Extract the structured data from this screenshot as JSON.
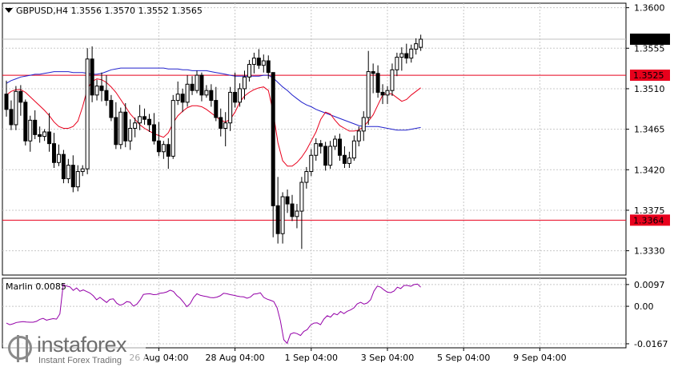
{
  "chart_data": [
    {
      "type": "candlestick",
      "title": "GBPUSD,H4  1.3556 1.3570 1.3552 1.3565",
      "ylim": [
        1.3303,
        1.3605
      ],
      "y_ticks": [
        "1.3600",
        "1.3555",
        "1.3510",
        "1.3465",
        "1.3420",
        "1.3375",
        "1.3330"
      ],
      "x_ticks": [
        "26 Aug 04:00",
        "28 Aug 04:00",
        "1 Sep 04:00",
        "3 Sep 04:00",
        "5 Sep 04:00",
        "9 Sep 04:00"
      ],
      "x_tick_bars": [
        32,
        48,
        64,
        80,
        96,
        112
      ],
      "current_price": "1.3565",
      "levels": [
        {
          "value": 1.3525,
          "label": "1.3525",
          "color": "#e8001c"
        },
        {
          "value": 1.3364,
          "label": "1.3364",
          "color": "#e8001c"
        }
      ],
      "grid": true,
      "ohlc": [
        [
          1.3504,
          1.3519,
          1.3479,
          1.3487
        ],
        [
          1.3487,
          1.3497,
          1.3464,
          1.347
        ],
        [
          1.347,
          1.3513,
          1.3464,
          1.3507
        ],
        [
          1.3507,
          1.3514,
          1.348,
          1.3495
        ],
        [
          1.3495,
          1.3498,
          1.3447,
          1.3452
        ],
        [
          1.3452,
          1.348,
          1.344,
          1.3475
        ],
        [
          1.3475,
          1.3486,
          1.3454,
          1.3459
        ],
        [
          1.3459,
          1.3468,
          1.345,
          1.3457
        ],
        [
          1.3457,
          1.3465,
          1.3452,
          1.3462
        ],
        [
          1.3462,
          1.3483,
          1.344,
          1.3449
        ],
        [
          1.3449,
          1.3461,
          1.3422,
          1.3428
        ],
        [
          1.3428,
          1.3448,
          1.3424,
          1.3437
        ],
        [
          1.3437,
          1.3442,
          1.3405,
          1.341
        ],
        [
          1.341,
          1.3432,
          1.3405,
          1.3425
        ],
        [
          1.3425,
          1.3436,
          1.3395,
          1.3401
        ],
        [
          1.3401,
          1.3425,
          1.3396,
          1.3418
        ],
        [
          1.3418,
          1.3425,
          1.3413,
          1.3421
        ],
        [
          1.3421,
          1.3555,
          1.3415,
          1.3543
        ],
        [
          1.3543,
          1.3557,
          1.3495,
          1.3503
        ],
        [
          1.3503,
          1.352,
          1.3497,
          1.3513
        ],
        [
          1.3513,
          1.3528,
          1.3496,
          1.3508
        ],
        [
          1.3508,
          1.3525,
          1.3491,
          1.3497
        ],
        [
          1.3497,
          1.3503,
          1.3474,
          1.3478
        ],
        [
          1.3478,
          1.3495,
          1.3443,
          1.3448
        ],
        [
          1.3448,
          1.3489,
          1.3443,
          1.3484
        ],
        [
          1.3484,
          1.3494,
          1.3445,
          1.3452
        ],
        [
          1.3452,
          1.3476,
          1.3442,
          1.3466
        ],
        [
          1.3466,
          1.3478,
          1.3456,
          1.3472
        ],
        [
          1.3472,
          1.3492,
          1.3464,
          1.3479
        ],
        [
          1.3479,
          1.3488,
          1.347,
          1.3476
        ],
        [
          1.3476,
          1.3482,
          1.3462,
          1.347
        ],
        [
          1.347,
          1.3483,
          1.3448,
          1.3452
        ],
        [
          1.3452,
          1.3473,
          1.3435,
          1.344
        ],
        [
          1.344,
          1.3452,
          1.3432,
          1.3448
        ],
        [
          1.3448,
          1.3455,
          1.3421,
          1.3435
        ],
        [
          1.3435,
          1.3503,
          1.3432,
          1.3497
        ],
        [
          1.3497,
          1.3518,
          1.3492,
          1.3504
        ],
        [
          1.3504,
          1.351,
          1.3484,
          1.3495
        ],
        [
          1.3495,
          1.3525,
          1.349,
          1.3515
        ],
        [
          1.3515,
          1.3524,
          1.3503,
          1.3508
        ],
        [
          1.3508,
          1.353,
          1.3505,
          1.3525
        ],
        [
          1.3525,
          1.3528,
          1.3496,
          1.3503
        ],
        [
          1.3503,
          1.3514,
          1.35,
          1.3508
        ],
        [
          1.3508,
          1.3515,
          1.349,
          1.3497
        ],
        [
          1.3497,
          1.3512,
          1.3474,
          1.3478
        ],
        [
          1.3478,
          1.3488,
          1.3457,
          1.3466
        ],
        [
          1.3466,
          1.3484,
          1.3446,
          1.3472
        ],
        [
          1.3472,
          1.3512,
          1.3463,
          1.3506
        ],
        [
          1.3506,
          1.3528,
          1.3489,
          1.3495
        ],
        [
          1.3495,
          1.3516,
          1.349,
          1.351
        ],
        [
          1.351,
          1.353,
          1.3498,
          1.3523
        ],
        [
          1.3523,
          1.3542,
          1.3518,
          1.3537
        ],
        [
          1.3537,
          1.355,
          1.3527,
          1.3544
        ],
        [
          1.3544,
          1.3554,
          1.3532,
          1.3536
        ],
        [
          1.3536,
          1.3548,
          1.3528,
          1.3541
        ],
        [
          1.3541,
          1.3547,
          1.3521,
          1.3528
        ],
        [
          1.3528,
          1.3528,
          1.3345,
          1.338
        ],
        [
          1.338,
          1.3412,
          1.3338,
          1.3349
        ],
        [
          1.3349,
          1.3395,
          1.3338,
          1.339
        ],
        [
          1.339,
          1.3398,
          1.3372,
          1.3382
        ],
        [
          1.3382,
          1.3392,
          1.3363,
          1.3368
        ],
        [
          1.3368,
          1.3382,
          1.3355,
          1.3374
        ],
        [
          1.3374,
          1.3412,
          1.3332,
          1.3406
        ],
        [
          1.3406,
          1.3423,
          1.3399,
          1.3418
        ],
        [
          1.3418,
          1.3443,
          1.3413,
          1.3436
        ],
        [
          1.3436,
          1.3455,
          1.343,
          1.3449
        ],
        [
          1.3449,
          1.3453,
          1.3438,
          1.3446
        ],
        [
          1.3446,
          1.3451,
          1.3419,
          1.3425
        ],
        [
          1.3425,
          1.3452,
          1.3421,
          1.3446
        ],
        [
          1.3446,
          1.3458,
          1.3442,
          1.3454
        ],
        [
          1.3454,
          1.346,
          1.343,
          1.3436
        ],
        [
          1.3436,
          1.3446,
          1.3422,
          1.3427
        ],
        [
          1.3427,
          1.344,
          1.3422,
          1.3433
        ],
        [
          1.3433,
          1.3458,
          1.343,
          1.3452
        ],
        [
          1.3452,
          1.3468,
          1.3446,
          1.3463
        ],
        [
          1.3463,
          1.3485,
          1.3452,
          1.3478
        ],
        [
          1.3478,
          1.3552,
          1.347,
          1.3529
        ],
        [
          1.3529,
          1.3538,
          1.3505,
          1.3527
        ],
        [
          1.3527,
          1.3536,
          1.35,
          1.3506
        ],
        [
          1.3506,
          1.3515,
          1.3493,
          1.3503
        ],
        [
          1.3503,
          1.3513,
          1.3493,
          1.3508
        ],
        [
          1.3508,
          1.3538,
          1.3502,
          1.3531
        ],
        [
          1.3531,
          1.355,
          1.3524,
          1.3545
        ],
        [
          1.3545,
          1.3556,
          1.353,
          1.3549
        ],
        [
          1.3549,
          1.356,
          1.3538,
          1.3544
        ],
        [
          1.3544,
          1.3559,
          1.3539,
          1.3554
        ],
        [
          1.3554,
          1.3566,
          1.3548,
          1.356
        ],
        [
          1.3556,
          1.357,
          1.3552,
          1.3565
        ]
      ],
      "series": [
        {
          "name": "",
          "color": "#2222cc",
          "values": [
            1.3516,
            1.3519,
            1.3521,
            1.3523,
            1.3524,
            1.3525,
            1.3526,
            1.3526,
            1.3527,
            1.3528,
            1.3529,
            1.3529,
            1.3529,
            1.3529,
            1.3528,
            1.3528,
            1.3528,
            1.3527,
            1.3526,
            1.3526,
            1.3527,
            1.3529,
            1.3531,
            1.3532,
            1.3533,
            1.3533,
            1.3533,
            1.3533,
            1.3533,
            1.3533,
            1.3533,
            1.3533,
            1.3533,
            1.3533,
            1.3532,
            1.3532,
            1.3532,
            1.3531,
            1.3531,
            1.353,
            1.353,
            1.353,
            1.353,
            1.3529,
            1.3528,
            1.3527,
            1.3526,
            1.3525,
            1.3524,
            1.3524,
            1.3524,
            1.3524,
            1.3524,
            1.3524,
            1.3525,
            1.3525,
            1.3522,
            1.3517,
            1.3512,
            1.3508,
            1.3503,
            1.3499,
            1.3495,
            1.3492,
            1.349,
            1.3487,
            1.3485,
            1.3483,
            1.3481,
            1.3479,
            1.3477,
            1.3475,
            1.3473,
            1.3471,
            1.3469,
            1.3468,
            1.3468,
            1.3468,
            1.3468,
            1.3467,
            1.3466,
            1.3465,
            1.3464,
            1.3464,
            1.3464,
            1.3465,
            1.3466,
            1.3467
          ]
        },
        {
          "name": "",
          "color": "#e8001c",
          "values": [
            1.3503,
            1.3507,
            1.3509,
            1.3509,
            1.3506,
            1.3501,
            1.3496,
            1.3491,
            1.3486,
            1.348,
            1.3473,
            1.3468,
            1.3466,
            1.3466,
            1.3468,
            1.3474,
            1.349,
            1.351,
            1.3518,
            1.3521,
            1.352,
            1.3517,
            1.3512,
            1.3506,
            1.3498,
            1.349,
            1.3482,
            1.3476,
            1.347,
            1.3466,
            1.3463,
            1.346,
            1.3458,
            1.3456,
            1.3461,
            1.3472,
            1.348,
            1.3485,
            1.3489,
            1.3491,
            1.3491,
            1.349,
            1.3487,
            1.3483,
            1.3479,
            1.3475,
            1.3473,
            1.3476,
            1.3484,
            1.3495,
            1.3502,
            1.3506,
            1.3509,
            1.3511,
            1.3512,
            1.3508,
            1.3484,
            1.345,
            1.343,
            1.3424,
            1.3424,
            1.3428,
            1.3434,
            1.3442,
            1.3452,
            1.3462,
            1.3476,
            1.3484,
            1.3482,
            1.3475,
            1.3469,
            1.3466,
            1.3463,
            1.3463,
            1.3464,
            1.3468,
            1.3474,
            1.3481,
            1.3492,
            1.3503,
            1.3505,
            1.3504,
            1.35,
            1.3496,
            1.3498,
            1.3503,
            1.3507,
            1.3511
          ]
        }
      ]
    },
    {
      "type": "line",
      "title": "Marlin 0.0085",
      "ylim": [
        -0.0185,
        0.0125
      ],
      "y_ticks": [
        "0.0097",
        "0.00",
        "-0.0167"
      ],
      "series": [
        {
          "name": "Marlin",
          "color": "#9400a8",
          "values": [
            -0.0075,
            -0.0082,
            -0.0078,
            -0.0072,
            -0.007,
            -0.0068,
            -0.007,
            -0.0071,
            -0.0071,
            -0.0067,
            -0.0058,
            -0.0054,
            -0.0062,
            -0.0058,
            -0.0055,
            -0.0057,
            -0.0034,
            0.0097,
            0.009,
            0.0087,
            0.0071,
            0.0082,
            0.0067,
            0.0073,
            0.0066,
            0.0059,
            0.0047,
            0.0029,
            0.004,
            0.0028,
            0.0017,
            0.0031,
            0.0033,
            0.0014,
            0.0005,
            0.001,
            0.0021,
            0.0018,
            0.0001,
            0.0009,
            0.0028,
            0.0053,
            0.0055,
            0.0056,
            0.0052,
            0.0053,
            0.0058,
            0.006,
            0.0064,
            0.0072,
            0.0066,
            0.0048,
            0.0036,
            0.0018,
            -0.0002,
            0.0012,
            0.0039,
            0.0056,
            0.0049,
            0.0046,
            0.0043,
            0.0039,
            0.0038,
            0.0041,
            0.0047,
            0.0058,
            0.0056,
            0.0052,
            0.0049,
            0.0046,
            0.0043,
            0.0042,
            0.0036,
            0.0041,
            0.0054,
            0.0056,
            0.006,
            0.004,
            0.0032,
            0.0027,
            0.0021,
            -0.0006,
            -0.0065,
            -0.0149,
            -0.0165,
            -0.0124,
            -0.0118,
            -0.0122,
            -0.013,
            -0.0112,
            -0.0104,
            -0.0084,
            -0.0075,
            -0.0074,
            -0.0082,
            -0.0057,
            -0.0042,
            -0.0048,
            -0.0032,
            -0.0038,
            -0.0023,
            -0.0033,
            -0.0022,
            -0.0016,
            -0.0007,
            0.0011,
            0.0018,
            0.001,
            0.0015,
            0.0029,
            0.0068,
            0.009,
            0.0085,
            0.0073,
            0.0063,
            0.0061,
            0.0068,
            0.0085,
            0.0079,
            0.0093,
            0.0093,
            0.0089,
            0.0097,
            0.0099,
            0.0085
          ]
        }
      ]
    }
  ],
  "watermark": {
    "brand": "instaforex",
    "tagline": "Instant Forex Trading"
  }
}
